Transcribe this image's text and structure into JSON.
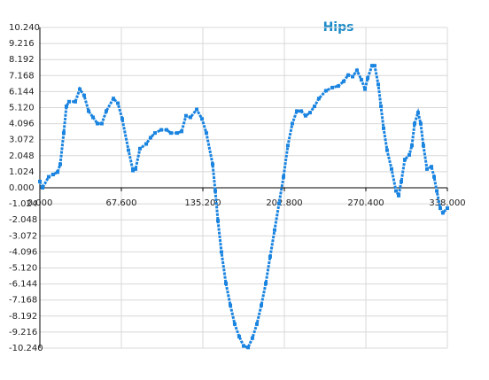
{
  "chart_data": {
    "type": "line",
    "title": "Hips",
    "x": [
      0,
      2.2,
      7.3,
      11,
      14.7,
      16.9,
      19.8,
      22,
      24.2,
      29.4,
      33.1,
      36.7,
      40.4,
      44.1,
      47.8,
      51.4,
      55.1,
      61,
      64.7,
      68.3,
      73.5,
      77.2,
      79.4,
      83,
      88.2,
      91.8,
      95.5,
      100.7,
      105.1,
      108.7,
      113.9,
      117.6,
      121.2,
      124.9,
      130.1,
      134.5,
      138.1,
      143.3,
      145.5,
      147.7,
      150.6,
      154.3,
      158,
      161.6,
      165.3,
      169,
      172.7,
      176.3,
      180,
      183.7,
      187.4,
      191,
      194.7,
      198.4,
      202.1,
      205.7,
      209.4,
      213.1,
      216.8,
      220.4,
      224.1,
      227.8,
      231.4,
      237.3,
      242.5,
      247.6,
      252,
      255.7,
      259.4,
      263,
      266.7,
      269.7,
      271.9,
      275.5,
      277.7,
      280.7,
      282.9,
      285.1,
      288,
      291.7,
      295.4,
      297.6,
      299.8,
      302.7,
      306.4,
      308.6,
      310.8,
      313.7,
      315.9,
      318.1,
      321.1,
      324.8,
      327,
      329.2,
      332.1,
      334.3,
      338
    ],
    "series": [
      {
        "name": "Hips",
        "color": "#1a84e0",
        "values": [
          0.4,
          0,
          0.7,
          0.85,
          1,
          1.5,
          3.5,
          5.2,
          5.5,
          5.5,
          6.3,
          5.9,
          4.9,
          4.5,
          4.1,
          4.1,
          4.9,
          5.7,
          5.4,
          4.4,
          2.4,
          1.1,
          1.2,
          2.5,
          2.8,
          3.2,
          3.5,
          3.7,
          3.7,
          3.5,
          3.5,
          3.6,
          4.6,
          4.5,
          5,
          4.4,
          3.5,
          1.5,
          -0.2,
          -2.1,
          -4.1,
          -6.1,
          -7.5,
          -8.7,
          -9.5,
          -10.1,
          -10.2,
          -9.6,
          -8.7,
          -7.5,
          -6.1,
          -4.4,
          -2.7,
          -1,
          0.7,
          2.7,
          4.1,
          4.9,
          4.9,
          4.6,
          4.8,
          5.2,
          5.7,
          6.2,
          6.4,
          6.5,
          6.8,
          7.2,
          7.1,
          7.5,
          6.9,
          6.3,
          7,
          7.8,
          7.8,
          6.6,
          5.2,
          3.8,
          2.4,
          1.2,
          -0.2,
          -0.5,
          0.4,
          1.8,
          2.1,
          2.7,
          4.1,
          4.8,
          4.1,
          2.7,
          1.2,
          1.35,
          0.7,
          -0.2,
          -1.3,
          -1.6,
          -1.3
        ]
      }
    ],
    "xlim": [
      0,
      338
    ],
    "xticks": [
      {
        "value": 0,
        "label": "0.000"
      },
      {
        "value": 67.6,
        "label": "67.600"
      },
      {
        "value": 135.2,
        "label": "135.200"
      },
      {
        "value": 202.8,
        "label": "202.800"
      },
      {
        "value": 270.4,
        "label": "270.400"
      },
      {
        "value": 338,
        "label": "338.000"
      }
    ],
    "ylim": [
      -10.24,
      10.24
    ],
    "yticks": [
      {
        "value": 10.24,
        "label": "10.240"
      },
      {
        "value": 9.216,
        "label": "9.216"
      },
      {
        "value": 8.192,
        "label": "8.192"
      },
      {
        "value": 7.168,
        "label": "7.168"
      },
      {
        "value": 6.144,
        "label": "6.144"
      },
      {
        "value": 5.12,
        "label": "5.120"
      },
      {
        "value": 4.096,
        "label": "4.096"
      },
      {
        "value": 3.072,
        "label": "3.072"
      },
      {
        "value": 2.048,
        "label": "2.048"
      },
      {
        "value": 1.024,
        "label": "1.024"
      },
      {
        "value": 0,
        "label": "0.000"
      },
      {
        "value": -1.024,
        "label": "-1.024"
      },
      {
        "value": -2.048,
        "label": "-2.048"
      },
      {
        "value": -3.072,
        "label": "-3.072"
      },
      {
        "value": -4.096,
        "label": "-4.096"
      },
      {
        "value": -5.12,
        "label": "-5.120"
      },
      {
        "value": -6.144,
        "label": "-6.144"
      },
      {
        "value": -7.168,
        "label": "-7.168"
      },
      {
        "value": -8.192,
        "label": "-8.192"
      },
      {
        "value": -9.216,
        "label": "-9.216"
      },
      {
        "value": -10.24,
        "label": "-10.240"
      }
    ],
    "grid": true
  }
}
